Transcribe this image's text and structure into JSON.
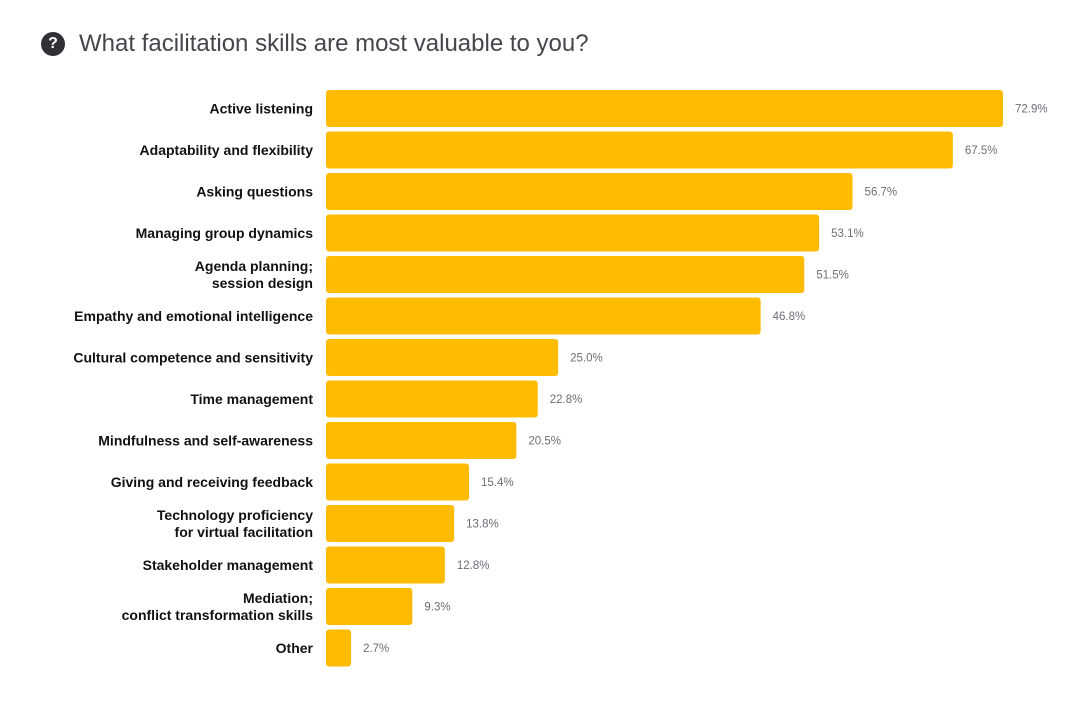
{
  "header": {
    "title": "What facilitation skills are most valuable to you?",
    "icon": "help-circle-icon"
  },
  "chart_data": {
    "type": "bar",
    "orientation": "horizontal",
    "title": "What facilitation skills are most valuable to you?",
    "xlim": [
      0,
      72.9
    ],
    "bar_color": "#FFBB00",
    "categories": [
      [
        "Active listening"
      ],
      [
        "Adaptability and flexibility"
      ],
      [
        "Asking questions"
      ],
      [
        "Managing group dynamics"
      ],
      [
        "Agenda planning;",
        "session design"
      ],
      [
        "Empathy and emotional intelligence"
      ],
      [
        "Cultural competence and sensitivity"
      ],
      [
        "Time management"
      ],
      [
        "Mindfulness and self-awareness"
      ],
      [
        "Giving and receiving feedback"
      ],
      [
        "Technology proficiency",
        "for virtual facilitation"
      ],
      [
        "Stakeholder management"
      ],
      [
        "Mediation;",
        "conflict transformation skills"
      ],
      [
        "Other"
      ]
    ],
    "values": [
      72.9,
      67.5,
      56.7,
      53.1,
      51.5,
      46.8,
      25.0,
      22.8,
      20.5,
      15.4,
      13.8,
      12.8,
      9.3,
      2.7
    ],
    "value_labels": [
      "72.9%",
      "67.5%",
      "56.7%",
      "53.1%",
      "51.5%",
      "46.8%",
      "25.0%",
      "22.8%",
      "20.5%",
      "15.4%",
      "13.8%",
      "12.8%",
      "9.3%",
      "2.7%"
    ]
  }
}
